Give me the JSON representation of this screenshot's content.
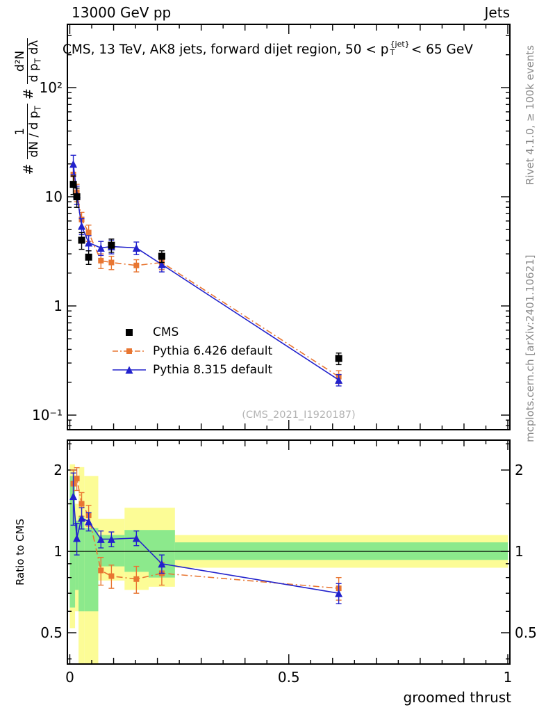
{
  "header": {
    "left": "13000 GeV pp",
    "right": "Jets"
  },
  "title": {
    "pre": "CMS, 13 TeV, AK8 jets, forward dijet region, 50 < p",
    "sup": "{jet}",
    "sub": "T",
    "post": "< 65 GeV"
  },
  "ylabel": {
    "hash1": "#",
    "f1_num": "1",
    "f1_den_a": "dN / d p",
    "f1_den_sub": "T",
    "hash2": "#",
    "f2_num": "d²N",
    "f2_den_a": "d p",
    "f2_den_sub": "T",
    "f2_den_b": " dλ"
  },
  "ratio_ylabel": "Ratio to CMS",
  "xlabel": "groomed thrust",
  "watermark": "(CMS_2021_I1920187)",
  "side_notes": {
    "right_top": "Rivet 4.1.0, ≥ 100k events",
    "right_bottom": "mcplots.cern.ch [arXiv:2401.10621]"
  },
  "legend": {
    "items": [
      {
        "label": "CMS"
      },
      {
        "label": "Pythia 6.426 default"
      },
      {
        "label": "Pythia 8.315 default"
      }
    ]
  },
  "axes": {
    "main_y": [
      {
        "v": 100,
        "label": "10²"
      },
      {
        "v": 10,
        "label": "10"
      },
      {
        "v": 1,
        "label": "1"
      },
      {
        "v": 0.1,
        "label": "10⁻¹"
      }
    ],
    "ratio_y": [
      {
        "v": 2,
        "label": "2"
      },
      {
        "v": 1,
        "label": "1"
      },
      {
        "v": 0.5,
        "label": "0.5"
      }
    ],
    "x": [
      {
        "v": 0,
        "label": "0"
      },
      {
        "v": 0.5,
        "label": "0.5"
      },
      {
        "v": 1,
        "label": "1"
      }
    ]
  },
  "chart_data": {
    "type": "line",
    "title": "CMS, 13 TeV, AK8 jets, forward dijet region, 50 < pT{jet} < 65 GeV",
    "xlabel": "groomed thrust",
    "ylabel": "# 1/(dN/dpT) # d²N/(dpT dλ)",
    "ratio_label": "Ratio to CMS",
    "xlim": [
      0,
      1
    ],
    "main_ylim": [
      0.074,
      360
    ],
    "main_yscale": "log",
    "ratio_ylim": [
      0.38,
      2.6
    ],
    "ratio_yscale": "log",
    "legend_position": "upper-left-inside",
    "grid": false,
    "colors": {
      "cms": "#000000",
      "pythia6": "#e87632",
      "pythia8": "#2222cc",
      "band_yellow": "#fcfc96",
      "band_green": "#8ce98c"
    },
    "series": [
      {
        "name": "CMS",
        "role": "data",
        "color": "#000000",
        "marker": "square",
        "marker_size": 10,
        "line": "none",
        "x": [
          0.008,
          0.016,
          0.027,
          0.043,
          0.095,
          0.21,
          0.614
        ],
        "y": [
          13,
          10,
          4.0,
          2.8,
          3.6,
          2.85,
          0.33
        ],
        "yerr": [
          2.5,
          2.0,
          0.7,
          0.4,
          0.5,
          0.35,
          0.04
        ]
      },
      {
        "name": "Pythia 6.426 default",
        "role": "mc",
        "color": "#e87632",
        "marker": "square",
        "marker_size": 8,
        "line": "dashdot",
        "x": [
          0.008,
          0.016,
          0.027,
          0.043,
          0.071,
          0.095,
          0.152,
          0.21,
          0.614
        ],
        "y": [
          16,
          11,
          6.2,
          4.7,
          2.6,
          2.5,
          2.35,
          2.5,
          0.225
        ],
        "yerr": [
          3,
          2,
          1.0,
          0.8,
          0.4,
          0.35,
          0.3,
          0.35,
          0.03
        ],
        "ratio": [
          1.78,
          1.86,
          1.5,
          1.36,
          0.85,
          0.81,
          0.79,
          0.83,
          0.73
        ],
        "ratio_err": [
          0.22,
          0.18,
          0.15,
          0.12,
          0.1,
          0.08,
          0.09,
          0.08,
          0.07
        ]
      },
      {
        "name": "Pythia 8.315 default",
        "role": "mc",
        "color": "#2222cc",
        "marker": "triangle",
        "marker_size": 11,
        "line": "solid",
        "x": [
          0.008,
          0.016,
          0.027,
          0.043,
          0.071,
          0.095,
          0.152,
          0.21,
          0.614
        ],
        "y": [
          20,
          10.5,
          5.4,
          3.8,
          3.4,
          3.5,
          3.4,
          2.4,
          0.21
        ],
        "yerr": [
          4,
          2,
          0.9,
          0.6,
          0.5,
          0.5,
          0.45,
          0.35,
          0.025
        ],
        "ratio": [
          1.6,
          1.12,
          1.33,
          1.29,
          1.11,
          1.11,
          1.12,
          0.9,
          0.7
        ],
        "ratio_err": [
          0.35,
          0.15,
          0.12,
          0.1,
          0.08,
          0.07,
          0.07,
          0.07,
          0.06
        ]
      }
    ],
    "ratio_bands": [
      {
        "x": [
          0,
          0.012
        ],
        "yellow": [
          0.52,
          2.1
        ],
        "green": [
          0.62,
          1.9
        ]
      },
      {
        "x": [
          0.012,
          0.02
        ],
        "yellow": [
          0.6,
          1.5
        ],
        "green": [
          0.72,
          1.3
        ]
      },
      {
        "x": [
          0.02,
          0.033
        ],
        "yellow": [
          0.38,
          2.05
        ],
        "green": [
          0.6,
          1.35
        ]
      },
      {
        "x": [
          0.033,
          0.065
        ],
        "yellow": [
          0.38,
          1.9
        ],
        "green": [
          0.6,
          1.22
        ]
      },
      {
        "x": [
          0.065,
          0.125
        ],
        "yellow": [
          0.78,
          1.32
        ],
        "green": [
          0.88,
          1.15
        ]
      },
      {
        "x": [
          0.125,
          0.18
        ],
        "yellow": [
          0.72,
          1.45
        ],
        "green": [
          0.84,
          1.2
        ]
      },
      {
        "x": [
          0.18,
          0.24
        ],
        "yellow": [
          0.74,
          1.45
        ],
        "green": [
          0.8,
          1.2
        ]
      },
      {
        "x": [
          0.24,
          1.0
        ],
        "yellow": [
          0.87,
          1.15
        ],
        "green": [
          0.93,
          1.08
        ]
      }
    ]
  }
}
